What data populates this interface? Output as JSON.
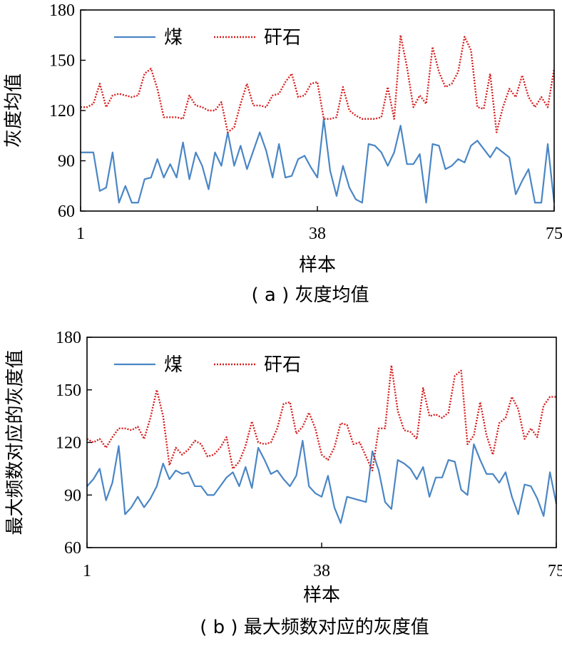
{
  "chart_data": [
    {
      "type": "line",
      "caption": "( a ) 灰度均值",
      "xlabel": "样本",
      "ylabel": "灰度均值",
      "xlim": [
        1,
        75
      ],
      "ylim": [
        60,
        180
      ],
      "xticks": [
        1,
        38,
        75
      ],
      "yticks": [
        60,
        90,
        120,
        150,
        180
      ],
      "legend": "top-left",
      "grid": false,
      "series": [
        {
          "name": "煤",
          "color": "#4a86c5",
          "style": "solid",
          "values": [
            95,
            95,
            95,
            72,
            74,
            95,
            65,
            75,
            65,
            65,
            79,
            80,
            91,
            80,
            88,
            80,
            101,
            79,
            95,
            87,
            73,
            95,
            87,
            107,
            87,
            99,
            85,
            96,
            107,
            96,
            80,
            100,
            80,
            81,
            91,
            93,
            86,
            80,
            115,
            84,
            69,
            87,
            74,
            67,
            65,
            100,
            99,
            95,
            87,
            95,
            111,
            88,
            88,
            94,
            65,
            100,
            99,
            85,
            87,
            91,
            89,
            99,
            102,
            97,
            92,
            98,
            95,
            92,
            70,
            78,
            85,
            65,
            65,
            100,
            65
          ]
        },
        {
          "name": "矸石",
          "color": "#d62020",
          "style": "dotted",
          "values": [
            122,
            122,
            124,
            136,
            122,
            129,
            130,
            129,
            128,
            129,
            142,
            145,
            133,
            116,
            116,
            116,
            115,
            129,
            123,
            122,
            120,
            120,
            125,
            107,
            110,
            124,
            136,
            123,
            123,
            122,
            129,
            130,
            137,
            142,
            128,
            129,
            136,
            137,
            115,
            115,
            116,
            134,
            120,
            117,
            115,
            115,
            115,
            116,
            134,
            115,
            165,
            146,
            122,
            129,
            124,
            158,
            143,
            134,
            136,
            143,
            164,
            156,
            122,
            121,
            142,
            107,
            122,
            133,
            128,
            141,
            128,
            122,
            128,
            122,
            145
          ]
        }
      ]
    },
    {
      "type": "line",
      "caption": "( b ) 最大频数对应的灰度值",
      "xlabel": "样本",
      "ylabel": "最大频数对应的灰度值",
      "xlim": [
        1,
        75
      ],
      "ylim": [
        60,
        180
      ],
      "xticks": [
        1,
        38,
        75
      ],
      "yticks": [
        60,
        90,
        120,
        150,
        180
      ],
      "legend": "top-left",
      "grid": false,
      "series": [
        {
          "name": "煤",
          "color": "#4a86c5",
          "style": "solid",
          "values": [
            95,
            99,
            105,
            87,
            97,
            118,
            79,
            83,
            89,
            83,
            88,
            95,
            108,
            99,
            104,
            102,
            103,
            95,
            95,
            90,
            90,
            95,
            100,
            103,
            95,
            106,
            94,
            117,
            110,
            102,
            104,
            99,
            95,
            101,
            121,
            95,
            91,
            89,
            101,
            83,
            74,
            89,
            88,
            87,
            86,
            115,
            104,
            86,
            82,
            110,
            108,
            105,
            99,
            106,
            89,
            100,
            100,
            110,
            109,
            93,
            90,
            119,
            110,
            102,
            102,
            97,
            103,
            89,
            79,
            96,
            95,
            88,
            78,
            103,
            85
          ]
        },
        {
          "name": "矸石",
          "color": "#d62020",
          "style": "dotted",
          "values": [
            122,
            120,
            122,
            117,
            123,
            128,
            128,
            127,
            129,
            122,
            134,
            150,
            135,
            107,
            117,
            113,
            116,
            121,
            119,
            112,
            113,
            117,
            123,
            105,
            109,
            118,
            132,
            120,
            119,
            120,
            128,
            142,
            143,
            125,
            129,
            137,
            128,
            113,
            110,
            117,
            131,
            130,
            119,
            120,
            112,
            104,
            128,
            128,
            164,
            138,
            127,
            126,
            122,
            151,
            135,
            136,
            134,
            137,
            158,
            161,
            119,
            124,
            143,
            124,
            113,
            131,
            134,
            146,
            139,
            122,
            128,
            123,
            141,
            146,
            146
          ]
        }
      ]
    }
  ]
}
